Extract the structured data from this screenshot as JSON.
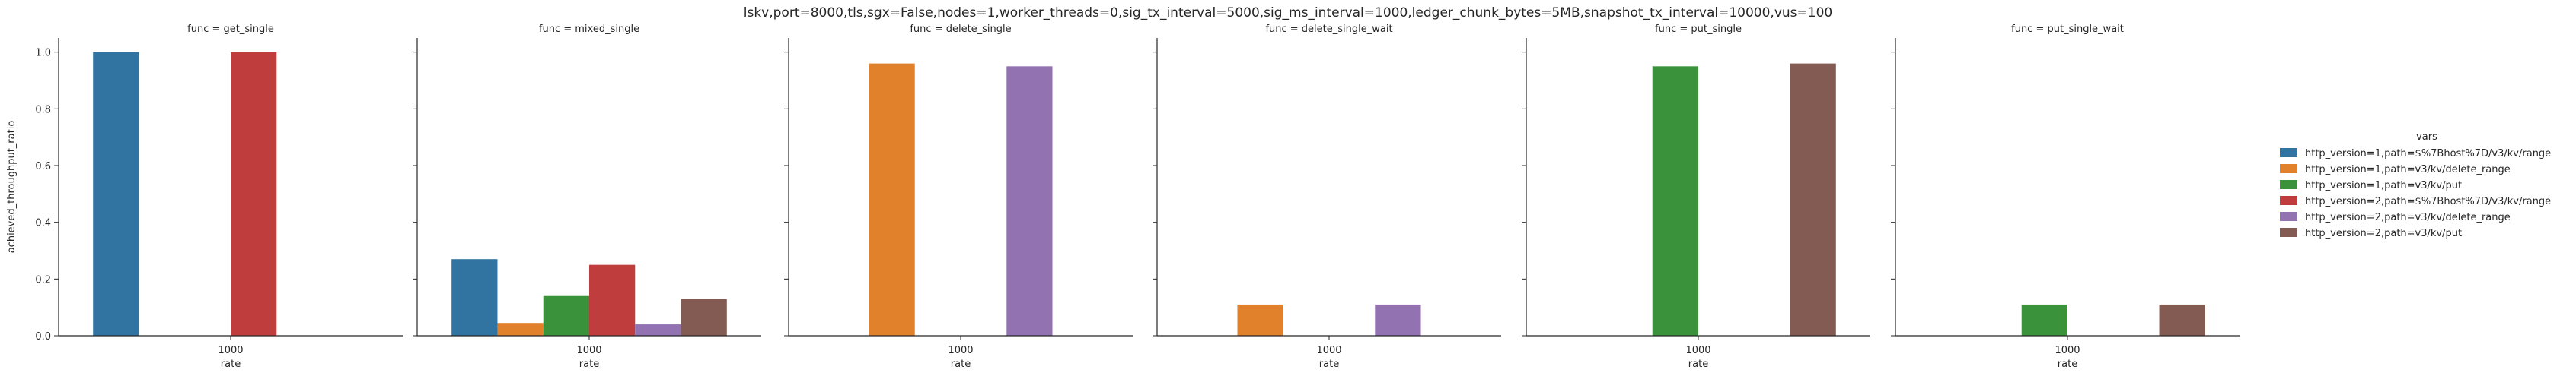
{
  "suptitle": "lskv,port=8000,tls,sgx=False,nodes=1,worker_threads=0,sig_tx_interval=5000,sig_ms_interval=1000,ledger_chunk_bytes=5MB,snapshot_tx_interval=10000,vus=100",
  "chart_data": {
    "type": "bar",
    "xlabel": "rate",
    "ylabel": "achieved_throughput_ratio",
    "ylim": [
      0,
      1.05
    ],
    "yticks": [
      "0.0",
      "0.2",
      "0.4",
      "0.6",
      "0.8",
      "1.0"
    ],
    "ytick_values": [
      0,
      0.2,
      0.4,
      0.6,
      0.8,
      1.0
    ],
    "categories": [
      "1000"
    ],
    "legend": {
      "title": "vars",
      "placement": "right",
      "entries": [
        {
          "name": "http_version=1,path=$%7Bhost%7D/v3/kv/range",
          "color": "#3274a1"
        },
        {
          "name": "http_version=1,path=v3/kv/delete_range",
          "color": "#e1812c"
        },
        {
          "name": "http_version=1,path=v3/kv/put",
          "color": "#3a923a"
        },
        {
          "name": "http_version=2,path=$%7Bhost%7D/v3/kv/range",
          "color": "#c03d3e"
        },
        {
          "name": "http_version=2,path=v3/kv/delete_range",
          "color": "#9372b2"
        },
        {
          "name": "http_version=2,path=v3/kv/put",
          "color": "#845b53"
        }
      ]
    },
    "panels": [
      {
        "title": "func = get_single",
        "values": [
          1.0,
          null,
          null,
          1.0,
          null,
          null
        ]
      },
      {
        "title": "func = mixed_single",
        "values": [
          0.27,
          0.045,
          0.14,
          0.25,
          0.04,
          0.13
        ]
      },
      {
        "title": "func = delete_single",
        "values": [
          null,
          0.96,
          null,
          null,
          0.95,
          null
        ]
      },
      {
        "title": "func = delete_single_wait",
        "values": [
          null,
          0.11,
          null,
          null,
          0.11,
          null
        ]
      },
      {
        "title": "func = put_single",
        "values": [
          null,
          null,
          0.95,
          null,
          null,
          0.96
        ]
      },
      {
        "title": "func = put_single_wait",
        "values": [
          null,
          null,
          0.11,
          null,
          null,
          0.11
        ]
      }
    ]
  }
}
